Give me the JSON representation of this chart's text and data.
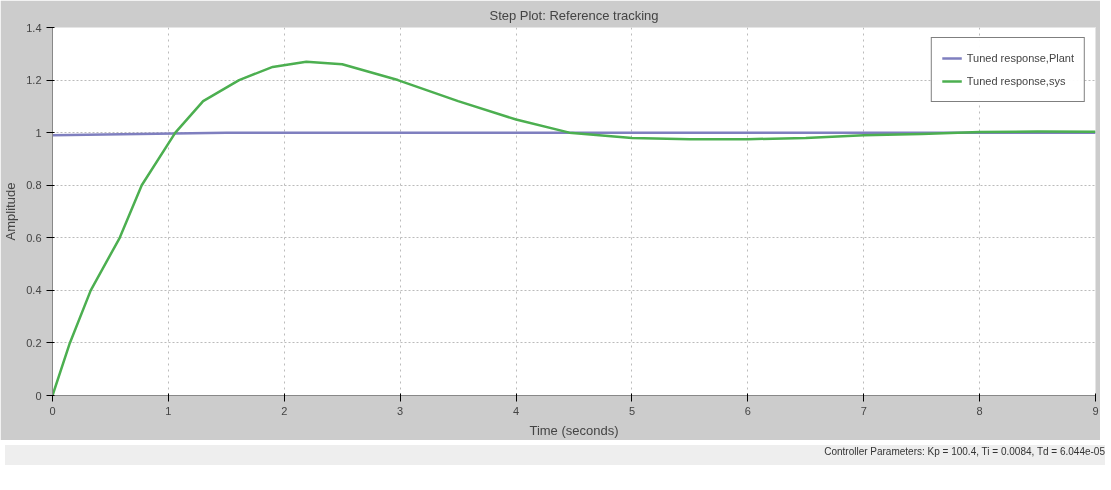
{
  "chart_data": {
    "type": "line",
    "title": "Step Plot: Reference tracking",
    "xlabel": "Time (seconds)",
    "ylabel": "Amplitude",
    "xlim": [
      0,
      9
    ],
    "ylim": [
      0,
      1.4
    ],
    "xticks": [
      0,
      1,
      2,
      3,
      4,
      5,
      6,
      7,
      8,
      9
    ],
    "yticks": [
      0,
      0.2,
      0.4,
      0.6,
      0.8,
      1,
      1.2,
      1.4
    ],
    "grid": true,
    "legend": "top right",
    "line_style": "solid",
    "marker": "none",
    "annotations": [
      "Controller Parameters: Kp = 100.4, Ti = 0.0084, Td = 6.044e-05"
    ],
    "series": [
      {
        "name": "Tuned response,Plant",
        "color": "#7f7fbf",
        "x": [
          0,
          1.5,
          3,
          4.5,
          6,
          7.5,
          9
        ],
        "values": [
          0.99,
          1,
          1,
          1,
          1,
          1,
          1
        ]
      },
      {
        "name": "Tuned response,sys",
        "color": "#4caf50",
        "x": [
          0,
          0.15,
          0.33,
          0.58,
          0.77,
          1.06,
          1.3,
          1.61,
          1.9,
          2.19,
          2.5,
          2.98,
          3.5,
          4,
          4.46,
          5,
          5.5,
          6,
          6.5,
          7,
          7.5,
          8,
          8.5,
          9
        ],
        "values": [
          0,
          0.2,
          0.4,
          0.6,
          0.8,
          1,
          1.12,
          1.2,
          1.25,
          1.27,
          1.26,
          1.2,
          1.12,
          1.05,
          1,
          0.98,
          0.975,
          0.975,
          0.98,
          0.99,
          0.995,
          1.002,
          1.004,
          1.003
        ]
      }
    ]
  }
}
